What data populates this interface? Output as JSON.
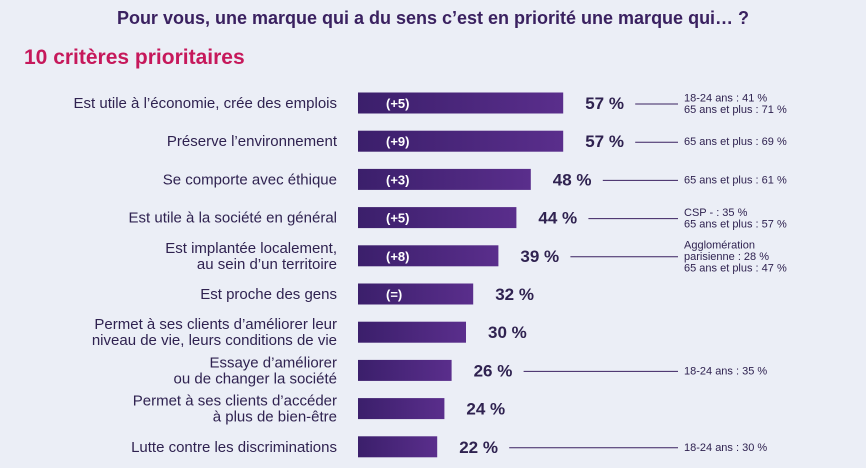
{
  "title": "Pour vous, une marque qui a du sens c’est en priorité une marque qui… ?",
  "subtitle": "10 critères prioritaires",
  "colors": {
    "bar_start": "#3b1f6b",
    "bar_end": "#5a2e8c",
    "title": "#3a2160",
    "subtitle": "#c6185b",
    "background": "#ebeef6"
  },
  "chart_data": {
    "type": "bar",
    "orientation": "horizontal",
    "unit": "%",
    "categories": [
      [
        "Est utile à l’économie, crée des emplois"
      ],
      [
        "Préserve l’environnement"
      ],
      [
        "Se comporte avec éthique"
      ],
      [
        "Est utile à la société en général"
      ],
      [
        "Est implantée localement,",
        "au sein d’un territoire"
      ],
      [
        "Est proche des gens"
      ],
      [
        "Permet à ses clients d’améliorer leur",
        "niveau de vie, leurs conditions de vie"
      ],
      [
        "Essaye d’améliorer",
        "ou de changer la société"
      ],
      [
        "Permet à ses clients d’accéder",
        "à plus de bien-être"
      ],
      [
        "Lutte contre les discriminations"
      ]
    ],
    "values": [
      57,
      57,
      48,
      44,
      39,
      32,
      30,
      26,
      24,
      22
    ],
    "value_labels": [
      "57 %",
      "57 %",
      "48 %",
      "44 %",
      "39 %",
      "32 %",
      "30 %",
      "26 %",
      "24 %",
      "22 %"
    ],
    "changes": [
      "(+5)",
      "(+9)",
      "(+3)",
      "(+5)",
      "(+8)",
      "(=)",
      "",
      "",
      "",
      ""
    ],
    "annotations": [
      [
        "18-24 ans : 41 %",
        "65 ans et plus : 71 %"
      ],
      [
        "65 ans et plus : 69 %"
      ],
      [
        "65 ans et plus : 61 %"
      ],
      [
        "CSP - : 35 %",
        "65 ans et plus : 57 %"
      ],
      [
        "Agglomération",
        "parisienne : 28 %",
        "65 ans et plus : 47 %"
      ],
      [],
      [],
      [
        "18-24 ans : 35 %"
      ],
      [],
      [
        "18-24 ans : 30 %"
      ]
    ]
  }
}
